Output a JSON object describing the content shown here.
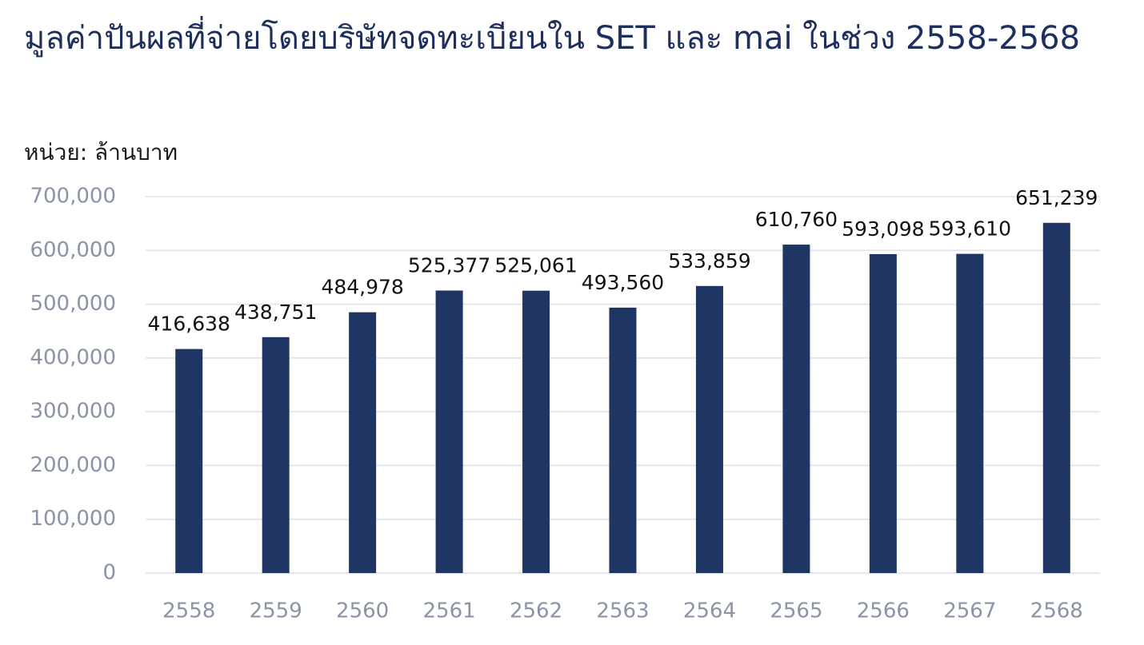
{
  "chart_data": {
    "type": "bar",
    "title": "มูลค่าปันผลที่จ่ายโดยบริษัทจดทะเบียนใน SET และ mai ในช่วง 2558-2568",
    "unit_label": "หน่วย: ล้านบาท",
    "categories": [
      "2558",
      "2559",
      "2560",
      "2561",
      "2562",
      "2563",
      "2564",
      "2565",
      "2566",
      "2567",
      "2568"
    ],
    "values": [
      416638,
      438751,
      484978,
      525377,
      525061,
      493560,
      533859,
      610760,
      593098,
      593610,
      651239
    ],
    "value_labels": [
      "416,638",
      "438,751",
      "484,978",
      "525,377",
      "525,061",
      "493,560",
      "533,859",
      "610,760",
      "593,098",
      "593,610",
      "651,239"
    ],
    "color": "#1f3563",
    "ylim": [
      0,
      700000
    ],
    "yticks": [
      0,
      {
        "value": 100000,
        "label": "100,000"
      },
      {
        "value": 200000,
        "label": "200,000"
      },
      {
        "value": 300000,
        "label": "300,000"
      },
      {
        "value": 400000,
        "label": "400,000"
      },
      {
        "value": 500000,
        "label": "500,000"
      },
      {
        "value": 600000,
        "label": "600,000"
      },
      {
        "value": 700000,
        "label": "700,000"
      }
    ],
    "grid": true
  }
}
